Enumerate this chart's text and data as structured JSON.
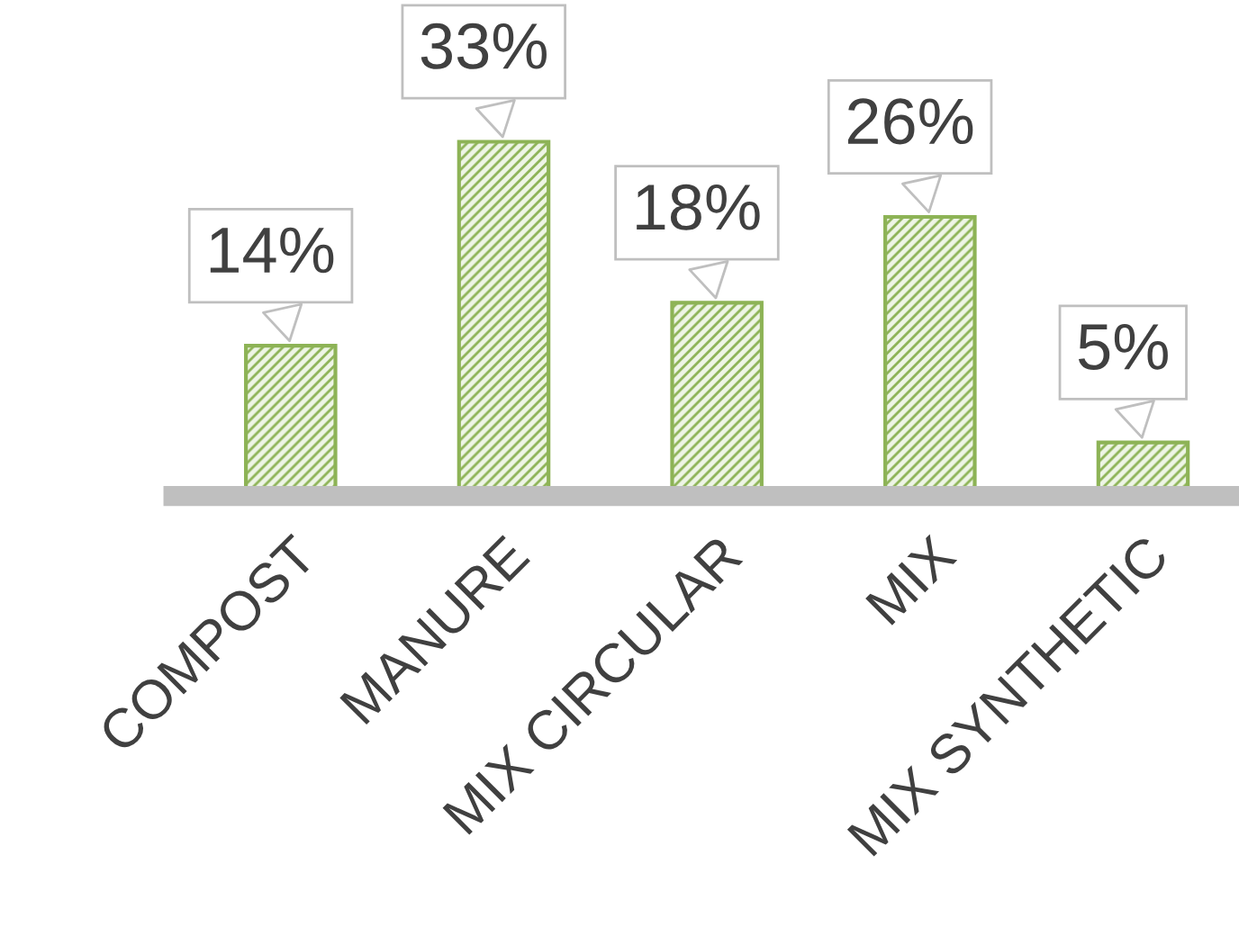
{
  "chart_data": {
    "type": "bar",
    "categories": [
      "COMPOST",
      "MANURE",
      "MIX CIRCULAR",
      "MIX",
      "MIX SYNTHETIC"
    ],
    "values": [
      14,
      33,
      18,
      26,
      5
    ],
    "value_labels": [
      "14%",
      "33%",
      "18%",
      "26%",
      "5%"
    ],
    "color": "#8db356",
    "grid": false,
    "legend": false
  }
}
